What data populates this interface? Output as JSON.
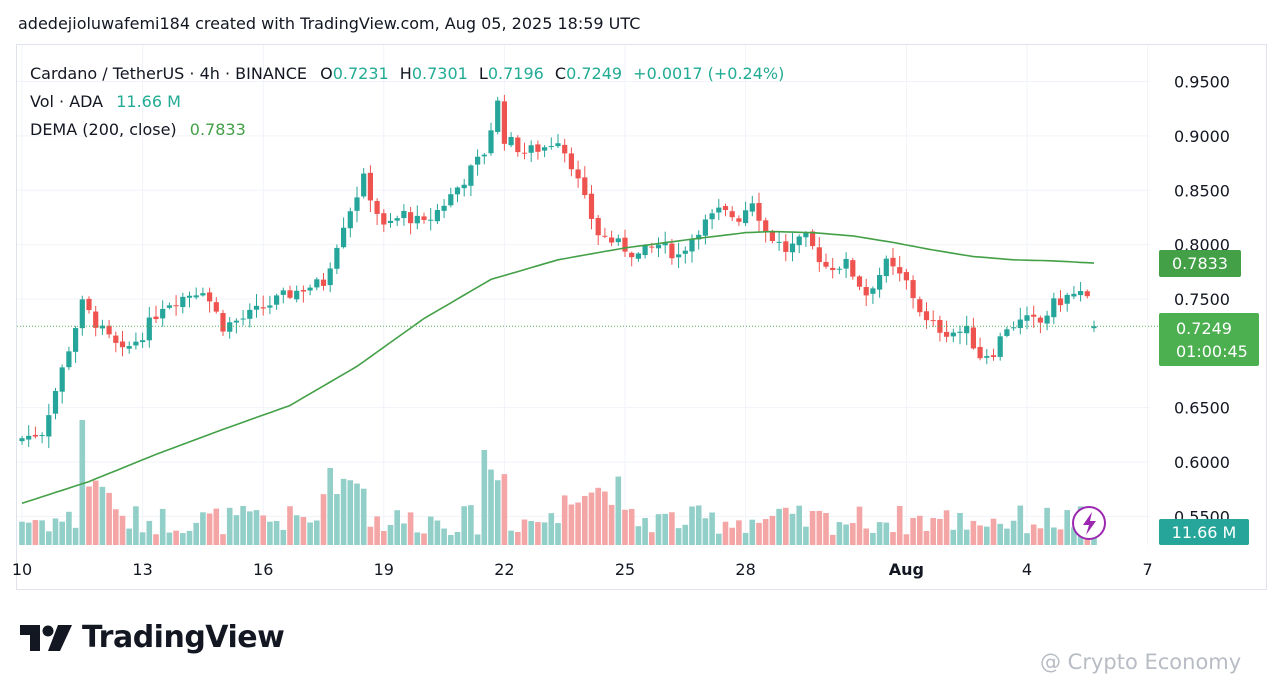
{
  "credit": "adedejioluwafemi184 created with TradingView.com, Aug 05, 2025 18:59 UTC",
  "legend": {
    "symbol": "Cardano / TetherUS · 4h · BINANCE",
    "o_label": "O",
    "o": "0.7231",
    "h_label": "H",
    "h": "0.7301",
    "l_label": "L",
    "l": "0.7196",
    "c_label": "C",
    "c": "0.7249",
    "change": "+0.0017 (+0.24%)",
    "vol_label": "Vol · ADA",
    "vol": "11.66 M",
    "dema_label": "DEMA (200, close)",
    "dema": "0.7833"
  },
  "tags": {
    "dema": "0.7833",
    "price": "0.7249",
    "countdown": "01:00:45",
    "volume": "11.66 M"
  },
  "brand": {
    "name": "TradingView"
  },
  "watermark": {
    "text": "@ Crypto Economy"
  },
  "colors": {
    "up": "#26a69a",
    "down": "#ef5350",
    "dema": "#43a047",
    "vol_up": "#91cfc8",
    "vol_down": "#f4a5a5",
    "price_tag": "#4caf50",
    "vol_tag": "#26a69a"
  },
  "chart_data": {
    "type": "candlestick",
    "ylim": [
      0.545,
      0.97
    ],
    "y_ticks": [
      "0.9500",
      "0.9000",
      "0.8500",
      "0.8000",
      "0.7500",
      "0.6500",
      "0.6000",
      "0.5500"
    ],
    "y_tick_values": [
      0.95,
      0.9,
      0.85,
      0.8,
      0.75,
      0.65,
      0.6,
      0.55
    ],
    "x_ticks": [
      {
        "label": "10",
        "bar": 0
      },
      {
        "label": "13",
        "bar": 18
      },
      {
        "label": "16",
        "bar": 36
      },
      {
        "label": "19",
        "bar": 54
      },
      {
        "label": "22",
        "bar": 72
      },
      {
        "label": "25",
        "bar": 90
      },
      {
        "label": "28",
        "bar": 108
      },
      {
        "label": "Aug",
        "bar": 132
      },
      {
        "label": "4",
        "bar": 150
      },
      {
        "label": "7",
        "bar": 168
      }
    ],
    "close_anchors": [
      [
        0,
        0.622
      ],
      [
        3,
        0.628
      ],
      [
        6,
        0.685
      ],
      [
        9,
        0.745
      ],
      [
        12,
        0.72
      ],
      [
        15,
        0.7
      ],
      [
        18,
        0.718
      ],
      [
        21,
        0.745
      ],
      [
        24,
        0.752
      ],
      [
        27,
        0.76
      ],
      [
        30,
        0.725
      ],
      [
        33,
        0.732
      ],
      [
        36,
        0.742
      ],
      [
        39,
        0.752
      ],
      [
        42,
        0.76
      ],
      [
        45,
        0.765
      ],
      [
        48,
        0.82
      ],
      [
        51,
        0.86
      ],
      [
        54,
        0.815
      ],
      [
        57,
        0.828
      ],
      [
        60,
        0.818
      ],
      [
        63,
        0.838
      ],
      [
        66,
        0.86
      ],
      [
        69,
        0.885
      ],
      [
        71,
        0.93
      ],
      [
        72,
        0.898
      ],
      [
        75,
        0.885
      ],
      [
        78,
        0.89
      ],
      [
        80,
        0.898
      ],
      [
        82,
        0.875
      ],
      [
        84,
        0.84
      ],
      [
        86,
        0.81
      ],
      [
        89,
        0.8
      ],
      [
        92,
        0.79
      ],
      [
        95,
        0.8
      ],
      [
        98,
        0.79
      ],
      [
        101,
        0.815
      ],
      [
        104,
        0.83
      ],
      [
        107,
        0.825
      ],
      [
        109,
        0.842
      ],
      [
        111,
        0.812
      ],
      [
        114,
        0.795
      ],
      [
        117,
        0.805
      ],
      [
        120,
        0.78
      ],
      [
        123,
        0.782
      ],
      [
        126,
        0.755
      ],
      [
        129,
        0.782
      ],
      [
        132,
        0.765
      ],
      [
        135,
        0.728
      ],
      [
        138,
        0.72
      ],
      [
        141,
        0.72
      ],
      [
        143,
        0.698
      ],
      [
        145,
        0.702
      ],
      [
        147,
        0.725
      ],
      [
        150,
        0.73
      ],
      [
        152,
        0.728
      ],
      [
        154,
        0.745
      ],
      [
        156,
        0.752
      ],
      [
        158,
        0.755
      ],
      [
        159,
        0.748
      ],
      [
        160,
        0.725
      ]
    ],
    "dema_anchors": [
      [
        0,
        0.562
      ],
      [
        10,
        0.582
      ],
      [
        20,
        0.607
      ],
      [
        30,
        0.63
      ],
      [
        40,
        0.652
      ],
      [
        50,
        0.688
      ],
      [
        60,
        0.732
      ],
      [
        70,
        0.768
      ],
      [
        80,
        0.786
      ],
      [
        90,
        0.797
      ],
      [
        100,
        0.805
      ],
      [
        108,
        0.811
      ],
      [
        112,
        0.812
      ],
      [
        118,
        0.811
      ],
      [
        124,
        0.808
      ],
      [
        130,
        0.802
      ],
      [
        136,
        0.795
      ],
      [
        142,
        0.789
      ],
      [
        148,
        0.786
      ],
      [
        154,
        0.785
      ],
      [
        160,
        0.783
      ]
    ],
    "total_bars": 161,
    "last": {
      "open": 0.7231,
      "high": 0.7301,
      "low": 0.7196,
      "close": 0.7249,
      "dema": 0.7833,
      "volume": "11.66 M"
    }
  }
}
